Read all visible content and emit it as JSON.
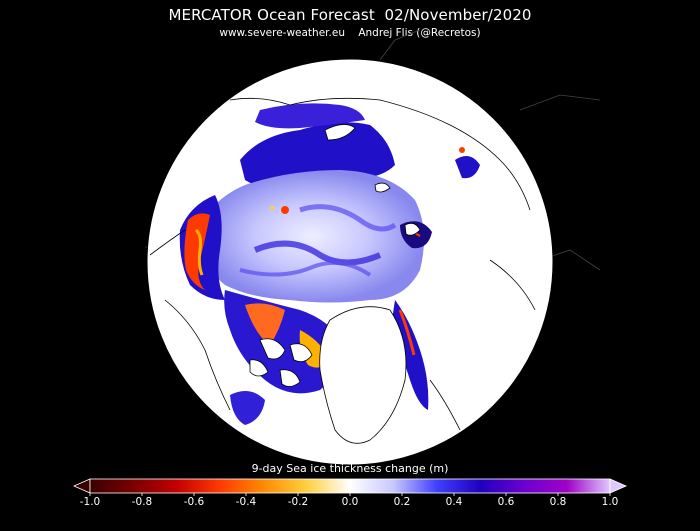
{
  "header": {
    "title": "MERCATOR Ocean Forecast  02/November/2020",
    "subtitle": "www.severe-weather.eu    Andrej Flis (@Recretos)"
  },
  "colorbar": {
    "label": "9-day Sea ice thickness change (m)",
    "ticks": [
      "-1.0",
      "-0.8",
      "-0.6",
      "-0.4",
      "-0.2",
      "0.0",
      "0.2",
      "0.4",
      "0.6",
      "0.8",
      "1.0"
    ],
    "range": [
      -1.0,
      1.0
    ],
    "colors": [
      "#3a0000",
      "#7a0000",
      "#c40000",
      "#ff3a00",
      "#ff8a00",
      "#ffd040",
      "#ffffff",
      "#c8c8ff",
      "#4040ff",
      "#2000c0",
      "#6a00d0",
      "#a000c8",
      "#e0c8ff"
    ]
  },
  "map": {
    "projection": "north-polar-stereographic",
    "colors": {
      "background": "#000000",
      "land": "#ffffff",
      "coastline": "#000000",
      "increase_strong": "#2010c8",
      "increase_mid": "#5a4cf0",
      "increase_light": "#b8b8ff",
      "decrease": "#ff3a00",
      "decrease_light": "#ffb000"
    }
  }
}
